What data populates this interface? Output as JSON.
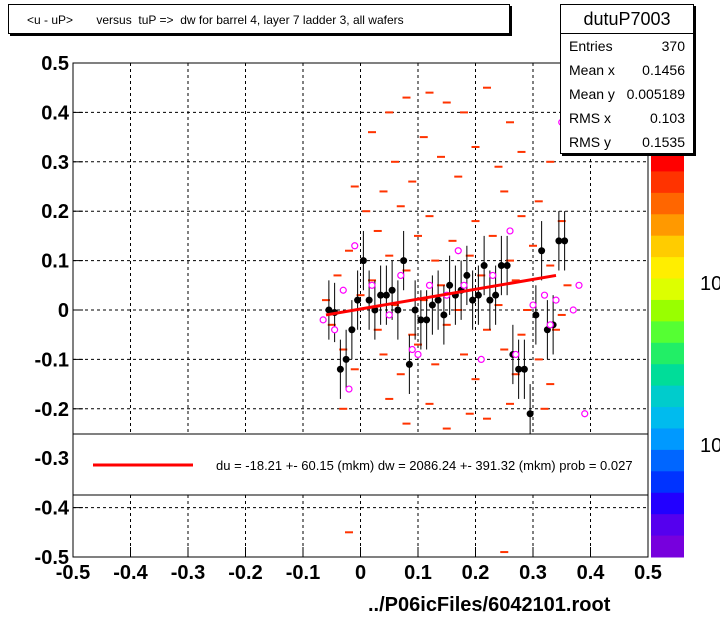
{
  "title": "<u - uP>       versus  tuP =>  dw for barrel 4, layer 7 ladder 3, all wafers",
  "stats": {
    "name": "dutuP7003",
    "rows": [
      {
        "label": "Entries",
        "value": "370"
      },
      {
        "label": "Mean x",
        "value": "0.1456"
      },
      {
        "label": "Mean y",
        "value": "0.005189"
      },
      {
        "label": "RMS x",
        "value": "0.103"
      },
      {
        "label": "RMS y",
        "value": "0.1535"
      }
    ]
  },
  "legend_text": "du =  -18.21 +- 60.15 (mkm) dw = 2086.24 +- 391.32 (mkm) prob = 0.027",
  "footer": "../P06icFiles/6042101.root",
  "colorbar_labels": [
    "10",
    "10"
  ],
  "colors": {
    "fit": "#ff0000",
    "hist": "#ff3300",
    "profile": "#000000",
    "marker": "#ff00ff"
  },
  "chart_data": {
    "type": "scatter",
    "xlim": [
      -0.5,
      0.5
    ],
    "ylim": [
      -0.5,
      0.5
    ],
    "xticks": [
      "-0.5",
      "-0.4",
      "-0.3",
      "-0.2",
      "-0.1",
      "0",
      "0.1",
      "0.2",
      "0.3",
      "0.4",
      "0.5"
    ],
    "yticks": [
      "-0.5",
      "-0.4",
      "-0.3",
      "-0.2",
      "-0.1",
      "0",
      "0.1",
      "0.2",
      "0.3",
      "0.4",
      "0.5"
    ],
    "grid": true,
    "fit_line": [
      [
        -0.06,
        -0.01
      ],
      [
        0.34,
        0.07
      ]
    ],
    "profile_points": [
      [
        -0.055,
        0.0
      ],
      [
        -0.045,
        -0.005
      ],
      [
        -0.035,
        -0.12
      ],
      [
        -0.025,
        -0.1
      ],
      [
        -0.015,
        -0.04
      ],
      [
        -0.005,
        0.02
      ],
      [
        0.005,
        0.1
      ],
      [
        0.015,
        0.02
      ],
      [
        0.025,
        0.0
      ],
      [
        0.035,
        0.03
      ],
      [
        0.045,
        0.03
      ],
      [
        0.055,
        0.04
      ],
      [
        0.065,
        0.0
      ],
      [
        0.075,
        0.1
      ],
      [
        0.085,
        -0.11
      ],
      [
        0.095,
        0.0
      ],
      [
        0.105,
        -0.02
      ],
      [
        0.115,
        -0.02
      ],
      [
        0.125,
        0.01
      ],
      [
        0.135,
        0.02
      ],
      [
        0.145,
        -0.01
      ],
      [
        0.155,
        0.05
      ],
      [
        0.165,
        0.03
      ],
      [
        0.175,
        0.04
      ],
      [
        0.185,
        0.07
      ],
      [
        0.195,
        0.02
      ],
      [
        0.205,
        0.03
      ],
      [
        0.215,
        0.09
      ],
      [
        0.225,
        0.02
      ],
      [
        0.235,
        0.03
      ],
      [
        0.245,
        0.09
      ],
      [
        0.255,
        0.09
      ],
      [
        0.265,
        -0.09
      ],
      [
        0.275,
        -0.12
      ],
      [
        0.285,
        -0.12
      ],
      [
        0.295,
        -0.21
      ],
      [
        0.305,
        -0.01
      ],
      [
        0.315,
        0.12
      ],
      [
        0.325,
        -0.04
      ],
      [
        0.335,
        -0.03
      ],
      [
        0.345,
        0.14
      ],
      [
        0.355,
        0.14
      ]
    ],
    "marker_points": [
      [
        -0.065,
        -0.02
      ],
      [
        -0.045,
        -0.04
      ],
      [
        -0.03,
        0.04
      ],
      [
        -0.02,
        -0.16
      ],
      [
        -0.01,
        0.13
      ],
      [
        0.02,
        0.05
      ],
      [
        0.05,
        -0.01
      ],
      [
        0.07,
        0.07
      ],
      [
        0.09,
        -0.08
      ],
      [
        0.1,
        -0.09
      ],
      [
        0.12,
        0.05
      ],
      [
        0.15,
        0.03
      ],
      [
        0.17,
        0.12
      ],
      [
        0.18,
        0.05
      ],
      [
        0.21,
        -0.1
      ],
      [
        0.23,
        0.07
      ],
      [
        0.26,
        0.16
      ],
      [
        0.27,
        -0.09
      ],
      [
        0.3,
        0.01
      ],
      [
        0.32,
        0.03
      ],
      [
        0.33,
        -0.03
      ],
      [
        0.34,
        0.02
      ],
      [
        0.35,
        0.38
      ],
      [
        0.37,
        0.0
      ],
      [
        0.38,
        0.05
      ],
      [
        0.39,
        -0.21
      ]
    ],
    "hist_cells": [
      [
        0.08,
        0.43
      ],
      [
        0.12,
        0.44
      ],
      [
        0.15,
        0.42
      ],
      [
        0.18,
        0.4
      ],
      [
        0.22,
        0.45
      ],
      [
        0.26,
        0.38
      ],
      [
        0.05,
        0.4
      ],
      [
        0.02,
        0.36
      ],
      [
        0.11,
        0.35
      ],
      [
        0.2,
        0.33
      ],
      [
        0.28,
        0.32
      ],
      [
        0.14,
        0.31
      ],
      [
        0.06,
        0.3
      ],
      [
        0.24,
        0.29
      ],
      [
        0.33,
        0.3
      ],
      [
        -0.01,
        0.25
      ],
      [
        0.04,
        0.24
      ],
      [
        0.09,
        0.26
      ],
      [
        0.17,
        0.27
      ],
      [
        0.25,
        0.24
      ],
      [
        0.31,
        0.22
      ],
      [
        0.01,
        0.2
      ],
      [
        0.07,
        0.21
      ],
      [
        0.12,
        0.19
      ],
      [
        0.2,
        0.18
      ],
      [
        0.28,
        0.19
      ],
      [
        0.35,
        0.18
      ],
      [
        0.03,
        0.16
      ],
      [
        0.1,
        0.15
      ],
      [
        0.16,
        0.14
      ],
      [
        0.23,
        0.15
      ],
      [
        0.3,
        0.13
      ],
      [
        -0.02,
        0.12
      ],
      [
        0.05,
        0.11
      ],
      [
        0.13,
        0.1
      ],
      [
        0.19,
        0.11
      ],
      [
        0.26,
        0.1
      ],
      [
        0.33,
        0.09
      ],
      [
        -0.04,
        0.07
      ],
      [
        0.02,
        0.06
      ],
      [
        0.08,
        0.08
      ],
      [
        0.14,
        0.05
      ],
      [
        0.21,
        0.07
      ],
      [
        0.27,
        0.06
      ],
      [
        0.36,
        0.05
      ],
      [
        -0.06,
        0.02
      ],
      [
        0.0,
        0.03
      ],
      [
        0.06,
        0.01
      ],
      [
        0.11,
        0.02
      ],
      [
        0.17,
        0.0
      ],
      [
        0.24,
        0.01
      ],
      [
        0.29,
        0.0
      ],
      [
        0.35,
        -0.01
      ],
      [
        -0.05,
        -0.03
      ],
      [
        0.03,
        -0.04
      ],
      [
        0.09,
        -0.05
      ],
      [
        0.15,
        -0.03
      ],
      [
        0.22,
        -0.04
      ],
      [
        0.28,
        -0.05
      ],
      [
        0.34,
        -0.04
      ],
      [
        -0.03,
        -0.08
      ],
      [
        0.04,
        -0.09
      ],
      [
        0.1,
        -0.07
      ],
      [
        0.18,
        -0.09
      ],
      [
        0.25,
        -0.08
      ],
      [
        0.31,
        -0.1
      ],
      [
        -0.01,
        -0.12
      ],
      [
        0.07,
        -0.13
      ],
      [
        0.13,
        -0.11
      ],
      [
        0.2,
        -0.14
      ],
      [
        0.27,
        -0.13
      ],
      [
        0.33,
        -0.15
      ],
      [
        -0.03,
        -0.2
      ],
      [
        0.05,
        -0.18
      ],
      [
        0.12,
        -0.19
      ],
      [
        0.19,
        -0.21
      ],
      [
        0.26,
        -0.19
      ],
      [
        0.32,
        -0.2
      ],
      [
        0.08,
        -0.23
      ],
      [
        0.15,
        -0.24
      ],
      [
        0.22,
        -0.22
      ],
      [
        -0.02,
        -0.45
      ],
      [
        0.25,
        -0.49
      ]
    ]
  }
}
